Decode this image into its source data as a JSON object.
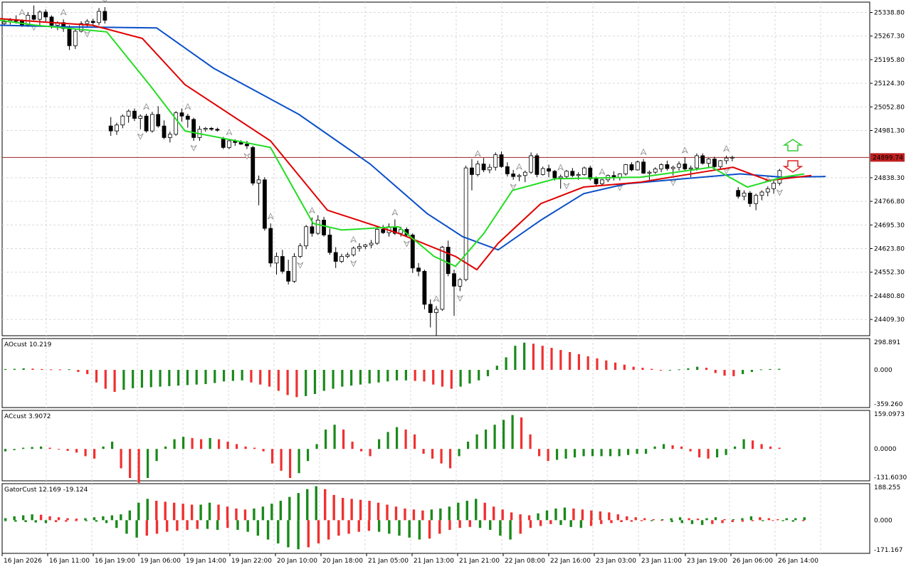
{
  "colors": {
    "background": "#ffffff",
    "grid": "#d9d9d9",
    "frame": "#000000",
    "bull_candle": "#ffffff",
    "bear_candle": "#000000",
    "blue_line": "#0a50c8",
    "red_line": "#e00000",
    "green_line": "#22dd22",
    "bar_up": "#1a8a1a",
    "bar_down": "#f03030",
    "price_line": "#a02020",
    "price_tag": "#c02020",
    "fractal": "#8c8c8c",
    "signal_up": "#33cc33",
    "signal_down": "#dd2222"
  },
  "price_axis": {
    "labels": [
      "25338.80",
      "25267.30",
      "25195.80",
      "25124.30",
      "25052.80",
      "24981.30",
      "24838.30",
      "24766.80",
      "24695.30",
      "24623.80",
      "24552.30",
      "24480.80",
      "24409.30"
    ],
    "min": 24360,
    "max": 25370,
    "current_price": "24899.74"
  },
  "time_axis": [
    "16 Jan 2026",
    "16 Jan 11:00",
    "16 Jan 19:00",
    "19 Jan 06:00",
    "19 Jan 14:00",
    "19 Jan 22:00",
    "20 Jan 10:00",
    "20 Jan 18:00",
    "21 Jan 05:00",
    "21 Jan 13:00",
    "21 Jan 21:00",
    "22 Jan 08:00",
    "22 Jan 16:00",
    "23 Jan 03:00",
    "23 Jan 11:00",
    "23 Jan 19:00",
    "26 Jan 06:00",
    "26 Jan 14:00"
  ],
  "panels": {
    "ao": {
      "label": "AOcust 10.219",
      "max": "298.891",
      "zero": "0.000",
      "min": "-359.260"
    },
    "ac": {
      "label": "ACcust 3.9072",
      "max": "159.0973",
      "zero": "0.0000",
      "min": "-131.6030"
    },
    "gator": {
      "label": "GatorCust 12.169 -19.124",
      "max": "188.255",
      "zero": "0.000",
      "min": "-171.167"
    }
  },
  "chart_data": {
    "type": "candlestick",
    "candles": [
      [
        25305,
        25320,
        25300,
        25310
      ],
      [
        25310,
        25322,
        25302,
        25315
      ],
      [
        25316,
        25330,
        25305,
        25312
      ],
      [
        25312,
        25318,
        25295,
        25300
      ],
      [
        25300,
        25340,
        25295,
        25330
      ],
      [
        25330,
        25360,
        25315,
        25318
      ],
      [
        25318,
        25345,
        25300,
        25340
      ],
      [
        25340,
        25348,
        25310,
        25325
      ],
      [
        25325,
        25330,
        25290,
        25300
      ],
      [
        25300,
        25312,
        25285,
        25308
      ],
      [
        25308,
        25318,
        25280,
        25290
      ],
      [
        25290,
        25300,
        25225,
        25238
      ],
      [
        25238,
        25290,
        25228,
        25282
      ],
      [
        25282,
        25312,
        25278,
        25305
      ],
      [
        25305,
        25318,
        25295,
        25312
      ],
      [
        25312,
        25320,
        25298,
        25308
      ],
      [
        25308,
        25352,
        25300,
        25342
      ],
      [
        25342,
        25355,
        25305,
        25315
      ],
      [
        24995,
        25022,
        24965,
        24980
      ],
      [
        24980,
        25005,
        24968,
        24998
      ],
      [
        24998,
        25030,
        24988,
        25025
      ],
      [
        25025,
        25045,
        25005,
        25040
      ],
      [
        25040,
        25048,
        25010,
        25018
      ],
      [
        25018,
        25030,
        24985,
        25025
      ],
      [
        25025,
        25032,
        24975,
        24980
      ],
      [
        24980,
        25038,
        24975,
        25030
      ],
      [
        25030,
        25055,
        24990,
        24995
      ],
      [
        24995,
        25012,
        24955,
        24960
      ],
      [
        24960,
        24978,
        24945,
        24970
      ],
      [
        24970,
        25040,
        24965,
        25035
      ],
      [
        25035,
        25048,
        25008,
        25025
      ],
      [
        25025,
        25032,
        24990,
        25015
      ],
      [
        25015,
        25020,
        24950,
        24960
      ],
      [
        24960,
        24995,
        24950,
        24985
      ],
      [
        24985,
        24992,
        24978,
        24988
      ],
      [
        24988,
        24992,
        24980,
        24985
      ],
      [
        24985,
        24990,
        24978,
        24982
      ],
      [
        24955,
        24962,
        24925,
        24930
      ],
      [
        24930,
        24955,
        24925,
        24950
      ],
      [
        24950,
        24955,
        24935,
        24945
      ],
      [
        24945,
        24952,
        24938,
        24940
      ],
      [
        24940,
        24950,
        24925,
        24935
      ],
      [
        24930,
        24935,
        24815,
        24822
      ],
      [
        24822,
        24845,
        24755,
        24832
      ],
      [
        24832,
        24840,
        24678,
        24685
      ],
      [
        24685,
        24700,
        24568,
        24580
      ],
      [
        24580,
        24612,
        24545,
        24600
      ],
      [
        24600,
        24620,
        24548,
        24555
      ],
      [
        24555,
        24590,
        24515,
        24525
      ],
      [
        24525,
        24610,
        24520,
        24600
      ],
      [
        24600,
        24640,
        24595,
        24632
      ],
      [
        24632,
        24695,
        24622,
        24690
      ],
      [
        24690,
        24718,
        24660,
        24670
      ],
      [
        24670,
        24725,
        24665,
        24710
      ],
      [
        24710,
        24720,
        24660,
        24665
      ],
      [
        24665,
        24685,
        24605,
        24612
      ],
      [
        24612,
        24628,
        24565,
        24585
      ],
      [
        24585,
        24608,
        24580,
        24600
      ],
      [
        24600,
        24612,
        24595,
        24605
      ],
      [
        24605,
        24630,
        24600,
        24625
      ],
      [
        24625,
        24640,
        24615,
        24630
      ],
      [
        24630,
        24638,
        24622,
        24635
      ],
      [
        24635,
        24650,
        24625,
        24640
      ],
      [
        24640,
        24690,
        24635,
        24682
      ],
      [
        24682,
        24695,
        24668,
        24672
      ],
      [
        24672,
        24700,
        24660,
        24690
      ],
      [
        24690,
        24712,
        24665,
        24670
      ],
      [
        24670,
        24690,
        24660,
        24682
      ],
      [
        24682,
        24688,
        24660,
        24665
      ],
      [
        24665,
        24670,
        24550,
        24565
      ],
      [
        24565,
        24580,
        24540,
        24555
      ],
      [
        24555,
        24560,
        24440,
        24455
      ],
      [
        24455,
        24470,
        24385,
        24430
      ],
      [
        24430,
        24450,
        24360,
        24440
      ],
      [
        24440,
        24632,
        24435,
        24628
      ],
      [
        24628,
        24648,
        24540,
        24548
      ],
      [
        24548,
        24560,
        24420,
        24510
      ],
      [
        24510,
        24535,
        24495,
        24530
      ],
      [
        24530,
        24875,
        24525,
        24868
      ],
      [
        24868,
        24895,
        24800,
        24848
      ],
      [
        24848,
        24890,
        24842,
        24880
      ],
      [
        24880,
        24898,
        24855,
        24862
      ],
      [
        24862,
        24880,
        24852,
        24870
      ],
      [
        24870,
        24915,
        24860,
        24908
      ],
      [
        24908,
        24918,
        24868,
        24872
      ],
      [
        24872,
        24885,
        24842,
        24850
      ],
      [
        24850,
        24862,
        24832,
        24842
      ],
      [
        24842,
        24850,
        24828,
        24845
      ],
      [
        24845,
        24860,
        24825,
        24855
      ],
      [
        24855,
        24915,
        24850,
        24905
      ],
      [
        24905,
        24912,
        24840,
        24848
      ],
      [
        24848,
        24872,
        24845,
        24866
      ],
      [
        24866,
        24878,
        24840,
        24858
      ],
      [
        24858,
        24862,
        24830,
        24838
      ],
      [
        24838,
        24848,
        24805,
        24842
      ],
      [
        24842,
        24862,
        24835,
        24858
      ],
      [
        24858,
        24868,
        24840,
        24845
      ],
      [
        24845,
        24855,
        24832,
        24848
      ],
      [
        24848,
        24872,
        24845,
        24868
      ],
      [
        24868,
        24875,
        24830,
        24835
      ],
      [
        24835,
        24842,
        24812,
        24820
      ],
      [
        24820,
        24835,
        24815,
        24832
      ],
      [
        24832,
        24848,
        24825,
        24845
      ],
      [
        24845,
        24858,
        24830,
        24838
      ],
      [
        24838,
        24852,
        24830,
        24850
      ],
      [
        24850,
        24880,
        24845,
        24878
      ],
      [
        24878,
        24885,
        24858,
        24862
      ],
      [
        24862,
        24890,
        24860,
        24886
      ],
      [
        24886,
        24895,
        24850,
        24852
      ],
      [
        24852,
        24860,
        24832,
        24855
      ],
      [
        24855,
        24870,
        24850,
        24865
      ],
      [
        24865,
        24882,
        24855,
        24878
      ],
      [
        24878,
        24890,
        24860,
        24866
      ],
      [
        24866,
        24875,
        24845,
        24870
      ],
      [
        24870,
        24888,
        24860,
        24880
      ],
      [
        24880,
        24900,
        24860,
        24865
      ],
      [
        24865,
        24875,
        24840,
        24868
      ],
      [
        24868,
        24912,
        24860,
        24905
      ],
      [
        24905,
        24912,
        24878,
        24882
      ],
      [
        24882,
        24898,
        24868,
        24895
      ],
      [
        24895,
        24902,
        24868,
        24872
      ],
      [
        24872,
        24892,
        24865,
        24890
      ],
      [
        24890,
        24905,
        24880,
        24898
      ],
      [
        24898,
        24905,
        24888,
        24900
      ],
      [
        24800,
        24810,
        24775,
        24782
      ],
      [
        24782,
        24800,
        24770,
        24792
      ],
      [
        24792,
        24798,
        24750,
        24760
      ],
      [
        24760,
        24790,
        24740,
        24785
      ],
      [
        24785,
        24800,
        24770,
        24795
      ],
      [
        24795,
        24812,
        24782,
        24805
      ],
      [
        24805,
        24830,
        24790,
        24822
      ],
      [
        24822,
        24865,
        24815,
        24860
      ],
      [
        24860,
        24900,
        24820,
        24830
      ],
      [
        24830,
        24842,
        24800,
        24810
      ],
      [
        24810,
        24850,
        24800,
        24845
      ],
      [
        24845,
        24880,
        24840,
        24875
      ],
      [
        24875,
        24902,
        24868,
        24900
      ]
    ],
    "alligator": {
      "blue": [
        [
          0,
          25300
        ],
        [
          100,
          25295
        ],
        [
          220,
          25292
        ],
        [
          300,
          25170
        ],
        [
          420,
          25030
        ],
        [
          520,
          24880
        ],
        [
          600,
          24730
        ],
        [
          650,
          24660
        ],
        [
          700,
          24620
        ],
        [
          760,
          24710
        ],
        [
          820,
          24790
        ],
        [
          880,
          24820
        ],
        [
          960,
          24835
        ],
        [
          1040,
          24850
        ],
        [
          1100,
          24840
        ],
        [
          1160,
          24842
        ]
      ],
      "red": [
        [
          0,
          25320
        ],
        [
          60,
          25310
        ],
        [
          130,
          25300
        ],
        [
          200,
          25260
        ],
        [
          260,
          25120
        ],
        [
          380,
          24950
        ],
        [
          460,
          24740
        ],
        [
          560,
          24670
        ],
        [
          640,
          24600
        ],
        [
          670,
          24560
        ],
        [
          700,
          24640
        ],
        [
          760,
          24760
        ],
        [
          820,
          24810
        ],
        [
          900,
          24825
        ],
        [
          1000,
          24860
        ],
        [
          1030,
          24870
        ],
        [
          1080,
          24830
        ],
        [
          1140,
          24845
        ]
      ],
      "green": [
        [
          0,
          25315
        ],
        [
          50,
          25300
        ],
        [
          150,
          25280
        ],
        [
          210,
          25120
        ],
        [
          260,
          24980
        ],
        [
          380,
          24930
        ],
        [
          440,
          24700
        ],
        [
          480,
          24680
        ],
        [
          560,
          24690
        ],
        [
          610,
          24600
        ],
        [
          640,
          24570
        ],
        [
          680,
          24670
        ],
        [
          720,
          24800
        ],
        [
          780,
          24835
        ],
        [
          900,
          24840
        ],
        [
          1000,
          24870
        ],
        [
          1050,
          24810
        ],
        [
          1100,
          24840
        ],
        [
          1130,
          24850
        ]
      ]
    },
    "ao_values": [
      8,
      10,
      15,
      12,
      8,
      5,
      4,
      6,
      -20,
      -40,
      -120,
      -180,
      -210,
      -190,
      -175,
      -170,
      -165,
      -160,
      -155,
      -150,
      -145,
      -140,
      -135,
      -125,
      -110,
      -105,
      -100,
      -120,
      -140,
      -160,
      -200,
      -240,
      -260,
      -250,
      -230,
      -200,
      -180,
      -160,
      -150,
      -140,
      -130,
      -120,
      -110,
      -100,
      -100,
      -105,
      -110,
      -140,
      -160,
      -180,
      -160,
      -130,
      -100,
      -60,
      40,
      120,
      230,
      260,
      250,
      230,
      210,
      190,
      170,
      150,
      130,
      110,
      90,
      70,
      50,
      30,
      20,
      10,
      -5,
      -5,
      5,
      15,
      30,
      20,
      -30,
      -55,
      -60,
      -40,
      -20,
      5,
      8,
      10
    ],
    "ac_values": [
      -10,
      -5,
      5,
      8,
      10,
      5,
      -2,
      -8,
      -15,
      -30,
      -40,
      10,
      30,
      -80,
      -120,
      -140,
      -120,
      -50,
      10,
      40,
      50,
      45,
      40,
      45,
      40,
      30,
      20,
      10,
      5,
      -10,
      -60,
      -90,
      -120,
      -100,
      -50,
      20,
      80,
      100,
      80,
      30,
      -10,
      -30,
      40,
      70,
      90,
      80,
      60,
      -20,
      -40,
      -60,
      -80,
      -30,
      30,
      60,
      80,
      100,
      120,
      140,
      130,
      60,
      -30,
      -50,
      -45,
      -40,
      -35,
      -30,
      -30,
      -30,
      -30,
      -30,
      -25,
      -20,
      -20,
      10,
      20,
      15,
      10,
      -10,
      -35,
      -40,
      -35,
      -25,
      10,
      40,
      35,
      20,
      10,
      5
    ],
    "gator_upper": [
      10,
      20,
      25,
      30,
      28,
      20,
      15,
      10,
      8,
      10,
      15,
      20,
      25,
      30,
      50,
      90,
      110,
      100,
      95,
      90,
      85,
      80,
      80,
      90,
      80,
      70,
      60,
      55,
      60,
      70,
      85,
      100,
      120,
      140,
      160,
      175,
      160,
      130,
      115,
      110,
      105,
      100,
      90,
      80,
      70,
      60,
      55,
      50,
      55,
      60,
      70,
      90,
      100,
      110,
      90,
      70,
      55,
      40,
      30,
      25,
      35,
      50,
      60,
      65,
      60,
      55,
      50,
      45,
      40,
      30,
      20,
      15,
      10,
      5,
      5,
      10,
      15,
      10,
      8,
      10,
      15,
      5,
      5,
      10,
      20,
      15,
      10,
      5,
      10,
      10,
      15
    ],
    "gator_lower": [
      -5,
      -8,
      -10,
      -12,
      -15,
      -10,
      -8,
      -5,
      -5,
      -8,
      -15,
      -40,
      -70,
      -90,
      -80,
      -70,
      -60,
      -55,
      -50,
      -45,
      -45,
      -50,
      -40,
      -50,
      -60,
      -80,
      -100,
      -120,
      -140,
      -150,
      -140,
      -120,
      -100,
      -80,
      -70,
      -60,
      -55,
      -60,
      -70,
      -80,
      -90,
      -100,
      -95,
      -70,
      -50,
      -40,
      -35,
      -40,
      -50,
      -80,
      -100,
      -70,
      -40,
      -30,
      -20,
      -25,
      -35,
      -40,
      -30,
      -20,
      -15,
      -10,
      -8,
      -5,
      -5,
      -3,
      -10,
      -15,
      -20,
      -25,
      -20,
      -15,
      -10,
      -8,
      -5,
      -5,
      -3,
      -5,
      -8,
      -5
    ],
    "price_label": "24899.74"
  }
}
